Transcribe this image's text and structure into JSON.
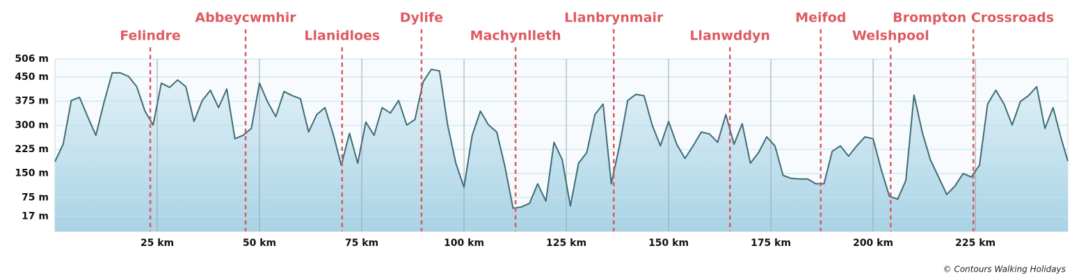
{
  "chart_data": {
    "type": "area",
    "color": "#3e6b75",
    "fill_top": "#e4f2f8",
    "fill_bottom": "#a9d3e5",
    "marker_color": "#de5a5f",
    "grid": true,
    "xlim": [
      0,
      247.6
    ],
    "ylim": [
      -30,
      506
    ],
    "xticks": [
      {
        "value": 25,
        "label": "25 km"
      },
      {
        "value": 50,
        "label": "50 km"
      },
      {
        "value": 75,
        "label": "75 km"
      },
      {
        "value": 100,
        "label": "100 km"
      },
      {
        "value": 125,
        "label": "125 km"
      },
      {
        "value": 150,
        "label": "150 km"
      },
      {
        "value": 175,
        "label": "175 km"
      },
      {
        "value": 200,
        "label": "200 km"
      },
      {
        "value": 225,
        "label": "225 km"
      }
    ],
    "yticks": [
      {
        "value": 17,
        "label": "17 m"
      },
      {
        "value": 75,
        "label": "75 m"
      },
      {
        "value": 150,
        "label": "150 m"
      },
      {
        "value": 225,
        "label": "225 m"
      },
      {
        "value": 300,
        "label": "300 m"
      },
      {
        "value": 375,
        "label": "375 m"
      },
      {
        "value": 450,
        "label": "450 m"
      },
      {
        "value": 506,
        "label": "506 m"
      }
    ],
    "x": [
      0,
      2,
      4,
      6,
      8,
      10,
      12,
      14,
      16,
      18,
      20,
      22,
      24,
      26,
      28,
      30,
      32,
      34,
      36,
      38,
      40,
      42,
      44,
      46,
      48,
      50,
      52,
      54,
      56,
      58,
      60,
      62,
      64,
      66,
      68,
      70,
      72,
      74,
      76,
      78,
      80,
      82,
      84,
      86,
      88,
      90,
      92,
      94,
      96,
      98,
      100,
      102,
      104,
      106,
      108,
      110,
      112,
      114,
      116,
      118,
      120,
      122,
      124,
      126,
      128,
      130,
      132,
      134,
      136,
      138,
      140,
      142,
      144,
      146,
      148,
      150,
      152,
      154,
      156,
      158,
      160,
      162,
      164,
      166,
      168,
      170,
      172,
      174,
      176,
      178,
      180,
      182,
      184,
      186,
      188,
      190,
      192,
      194,
      196,
      198,
      200,
      202,
      204,
      206,
      208,
      210,
      212,
      214,
      216,
      218,
      220,
      222,
      224,
      226,
      228,
      230,
      232,
      234,
      236,
      238,
      240,
      242,
      244,
      246,
      247.6
    ],
    "values": [
      187,
      241,
      377,
      387,
      327,
      269,
      372,
      463,
      463,
      452,
      420,
      344,
      301,
      431,
      418,
      441,
      420,
      312,
      377,
      409,
      355,
      413,
      258,
      269,
      290,
      431,
      372,
      327,
      405,
      392,
      383,
      279,
      333,
      355,
      273,
      176,
      275,
      182,
      310,
      269,
      355,
      338,
      377,
      301,
      318,
      435,
      474,
      469,
      301,
      182,
      107,
      269,
      344,
      301,
      279,
      172,
      42,
      46,
      57,
      118,
      64,
      247,
      193,
      49,
      182,
      215,
      333,
      366,
      118,
      236,
      377,
      396,
      392,
      301,
      236,
      312,
      241,
      197,
      236,
      279,
      273,
      247,
      333,
      241,
      305,
      182,
      215,
      264,
      236,
      144,
      135,
      133,
      133,
      118,
      118,
      219,
      236,
      204,
      236,
      264,
      258,
      161,
      79,
      70,
      128,
      394,
      279,
      193,
      139,
      85,
      111,
      150,
      139,
      176,
      366,
      409,
      366,
      301,
      374,
      392,
      420,
      290,
      355,
      258,
      189
    ],
    "markers": [
      {
        "name": "Felindre",
        "km": 23.3
      },
      {
        "name": "Abbeycwmhir",
        "km": 46.6
      },
      {
        "name": "Llanidloes",
        "km": 70.2
      },
      {
        "name": "Dylife",
        "km": 89.6
      },
      {
        "name": "Machynlleth",
        "km": 112.6
      },
      {
        "name": "Llanbrynmair",
        "km": 136.6
      },
      {
        "name": "Llanwddyn",
        "km": 165.0
      },
      {
        "name": "Meifod",
        "km": 187.2
      },
      {
        "name": "Welshpool",
        "km": 204.3
      },
      {
        "name": "Brompton Crossroads",
        "km": 224.5
      }
    ],
    "credit": "© Contours Walking Holidays"
  }
}
